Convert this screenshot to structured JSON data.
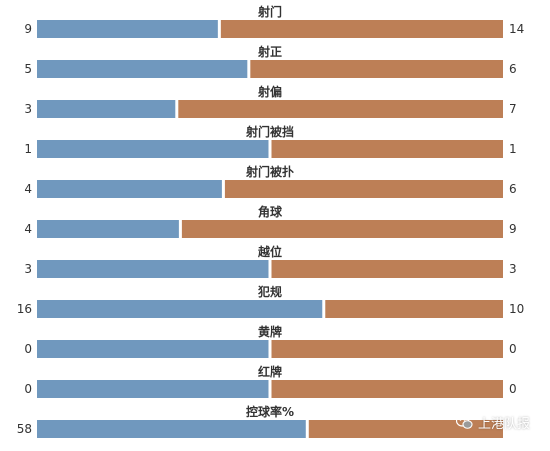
{
  "chart_data": {
    "type": "bar",
    "orientation": "horizontal-stacked-share",
    "categories": [
      "射门",
      "射正",
      "射偏",
      "射门被挡",
      "射门被扑",
      "角球",
      "越位",
      "犯规",
      "黄牌",
      "红牌",
      "控球率%"
    ],
    "series": [
      {
        "values": [
          9,
          5,
          3,
          1,
          4,
          4,
          3,
          16,
          0,
          0,
          58
        ]
      },
      {
        "values": [
          14,
          6,
          7,
          1,
          6,
          9,
          3,
          10,
          0,
          0,
          42
        ]
      }
    ],
    "right_labels": [
      "14",
      "6",
      "7",
      "1",
      "6",
      "9",
      "3",
      "10",
      "0",
      "0",
      ""
    ],
    "colors": {
      "left": "#7098be",
      "right": "#bd7f56"
    },
    "title": "",
    "xlabel": "",
    "ylabel": "",
    "grid": false,
    "legend": "none"
  },
  "watermark": {
    "text": "上港队报",
    "icon": "wechat-icon"
  }
}
